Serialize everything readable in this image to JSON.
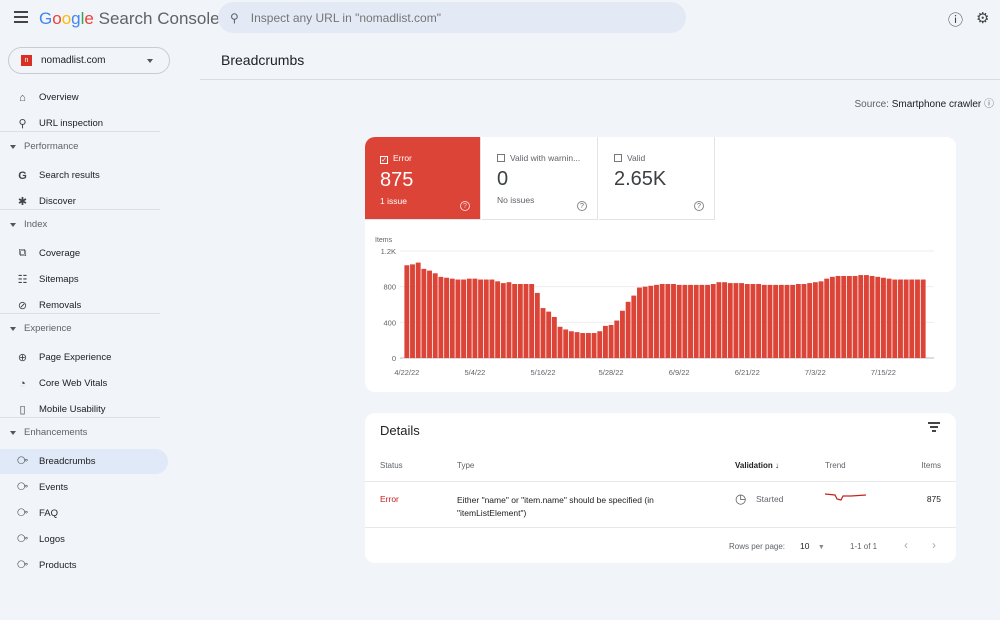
{
  "header": {
    "app_title": "Google Search Console",
    "search_placeholder": "Inspect any URL in \"nomadlist.com\"",
    "icons": [
      "menu-icon",
      "search-icon",
      "help-icon",
      "account-settings-icon"
    ]
  },
  "property": {
    "name": "nomadlist.com"
  },
  "sidebar": {
    "items": [
      {
        "label": "Overview",
        "icon": "home-icon"
      },
      {
        "label": "URL inspection",
        "icon": "search-icon"
      }
    ],
    "sections": [
      {
        "label": "Performance",
        "items": [
          {
            "label": "Search results",
            "icon": "google-g-icon"
          },
          {
            "label": "Discover",
            "icon": "asterisk-icon"
          }
        ]
      },
      {
        "label": "Index",
        "items": [
          {
            "label": "Coverage",
            "icon": "copy-icon"
          },
          {
            "label": "Sitemaps",
            "icon": "sitemap-icon"
          },
          {
            "label": "Removals",
            "icon": "eye-off-icon"
          }
        ]
      },
      {
        "label": "Experience",
        "items": [
          {
            "label": "Page Experience",
            "icon": "plus-circle-icon"
          },
          {
            "label": "Core Web Vitals",
            "icon": "gauge-icon"
          },
          {
            "label": "Mobile Usability",
            "icon": "phone-icon"
          }
        ]
      },
      {
        "label": "Enhancements",
        "items": [
          {
            "label": "Breadcrumbs",
            "icon": "layers-icon",
            "selected": true
          },
          {
            "label": "Events",
            "icon": "layers-icon"
          },
          {
            "label": "FAQ",
            "icon": "layers-icon"
          },
          {
            "label": "Logos",
            "icon": "layers-icon"
          },
          {
            "label": "Products",
            "icon": "layers-icon"
          }
        ]
      }
    ]
  },
  "page": {
    "title": "Breadcrumbs",
    "source_label": "Source:",
    "source_value": "Smartphone crawler"
  },
  "tiles": [
    {
      "label": "Error",
      "value": "875",
      "sub": "1 issue",
      "checked": true,
      "color": "#db4437"
    },
    {
      "label": "Valid with warnin...",
      "value": "0",
      "sub": "No issues",
      "checked": false
    },
    {
      "label": "Valid",
      "value": "2.65K",
      "sub": "",
      "checked": false
    }
  ],
  "chart_data": {
    "type": "bar",
    "ylabel": "Items",
    "ylim": [
      0,
      1200
    ],
    "yticks": [
      "0",
      "400",
      "800",
      "1.2K"
    ],
    "ytick_values": [
      0,
      400,
      800,
      1200
    ],
    "xtick_labels": [
      "4/22/22",
      "5/4/22",
      "5/16/22",
      "5/28/22",
      "6/9/22",
      "6/21/22",
      "7/3/22",
      "7/15/22"
    ],
    "start_date": "4/22/22",
    "color": "#db4437",
    "values": [
      1040,
      1050,
      1070,
      1000,
      980,
      950,
      910,
      900,
      890,
      880,
      880,
      890,
      890,
      880,
      880,
      880,
      860,
      840,
      850,
      830,
      830,
      830,
      830,
      730,
      560,
      520,
      460,
      350,
      320,
      300,
      290,
      280,
      280,
      280,
      300,
      360,
      370,
      420,
      530,
      630,
      700,
      790,
      800,
      810,
      820,
      830,
      830,
      830,
      820,
      820,
      820,
      820,
      820,
      820,
      830,
      850,
      850,
      840,
      840,
      840,
      830,
      830,
      830,
      820,
      820,
      820,
      820,
      820,
      820,
      830,
      830,
      840,
      850,
      860,
      890,
      910,
      920,
      920,
      920,
      920,
      930,
      930,
      920,
      910,
      900,
      890,
      880,
      880,
      880,
      880,
      880,
      880
    ]
  },
  "details": {
    "title": "Details",
    "columns": [
      "Status",
      "Type",
      "Validation",
      "Trend",
      "Items"
    ],
    "rows": [
      {
        "status": "Error",
        "type": "Either \"name\" or \"item.name\" should be specified (in \"itemListElement\")",
        "validation": "Started",
        "items": "875"
      }
    ],
    "rows_per_page_label": "Rows per page:",
    "rows_per_page": "10",
    "range": "1-1 of 1"
  }
}
